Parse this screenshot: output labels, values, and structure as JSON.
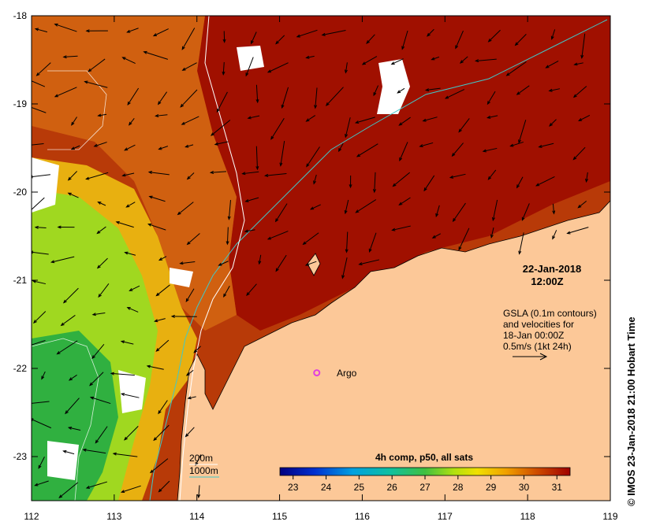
{
  "map": {
    "lon_ticks": [
      "112",
      "113",
      "114",
      "115",
      "116",
      "117",
      "118",
      "119"
    ],
    "lat_ticks": [
      "-18",
      "-19",
      "-20",
      "-21",
      "-22",
      "-23"
    ],
    "lon_range": [
      112,
      119
    ],
    "lat_range": [
      -23.5,
      -18
    ]
  },
  "date_label": {
    "line1": "22-Jan-2018",
    "line2": "12:00Z"
  },
  "legend_text": {
    "line1": "GSLA (0.1m contours)",
    "line2": "and velocities for",
    "line3": "18-Jan 00:00Z",
    "line4": "0.5m/s (1kt 24h)"
  },
  "depth_legend": {
    "item1": "200m",
    "item2": "1000m",
    "color1": "#ffffff",
    "color2": "#40c8c8"
  },
  "colorbar": {
    "title": "4h comp, p50, all sats",
    "ticks": [
      "23",
      "24",
      "25",
      "26",
      "27",
      "28",
      "29",
      "30",
      "31"
    ],
    "min": 22.6,
    "max": 31.4
  },
  "argo": {
    "label": "Argo",
    "lon": 115.45,
    "lat": -22.05,
    "color": "#e040e0"
  },
  "credit": "© IMOS 23-Jan-2018 21:00 Hobart Time",
  "colors": {
    "land": "#fcc898",
    "warm": "#a01000",
    "mid": "#d06010",
    "cool": "#30b040"
  }
}
